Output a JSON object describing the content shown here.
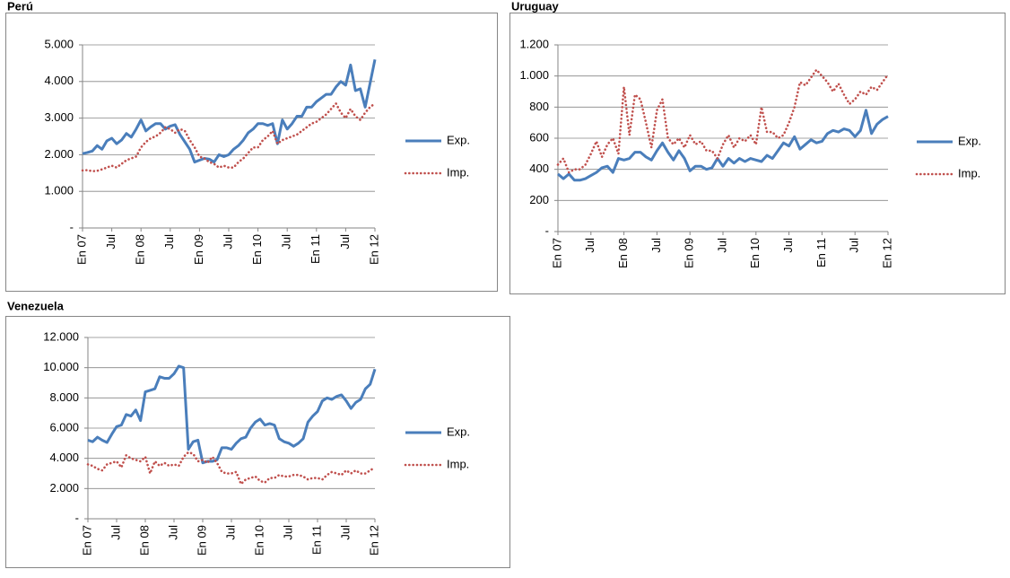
{
  "chart_data": [
    {
      "type": "line",
      "title": "Perú",
      "grid": true,
      "legend": "right",
      "categories": [
        "En 07",
        null,
        null,
        null,
        null,
        null,
        "Jul",
        null,
        null,
        null,
        null,
        null,
        "En 08",
        null,
        null,
        null,
        null,
        null,
        "Jul",
        null,
        null,
        null,
        null,
        null,
        "En 09",
        null,
        null,
        null,
        null,
        null,
        "Jul",
        null,
        null,
        null,
        null,
        null,
        "En 10",
        null,
        null,
        null,
        null,
        null,
        "Jul",
        null,
        null,
        null,
        null,
        null,
        "En 11",
        null,
        null,
        null,
        null,
        null,
        "Jul",
        null,
        null,
        null,
        null,
        null,
        "En 12"
      ],
      "ylim": [
        0,
        5000
      ],
      "yticks": [
        {
          "value": 0,
          "label": "-"
        },
        {
          "value": 1000,
          "label": "1.000"
        },
        {
          "value": 2000,
          "label": "2.000"
        },
        {
          "value": 3000,
          "label": "3.000"
        },
        {
          "value": 4000,
          "label": "4.000"
        },
        {
          "value": 5000,
          "label": "5.000"
        }
      ],
      "series": [
        {
          "name": "Exp.",
          "color": "#4a7ebb",
          "values": [
            2030,
            2060,
            2100,
            2250,
            2150,
            2380,
            2450,
            2300,
            2400,
            2580,
            2480,
            2700,
            2950,
            2650,
            2760,
            2850,
            2850,
            2700,
            2780,
            2820,
            2550,
            2350,
            2150,
            1800,
            1850,
            1900,
            1880,
            1800,
            2000,
            1950,
            2000,
            2150,
            2250,
            2400,
            2600,
            2700,
            2850,
            2850,
            2800,
            2850,
            2300,
            2950,
            2700,
            2850,
            3050,
            3050,
            3300,
            3300,
            3450,
            3550,
            3650,
            3650,
            3850,
            4000,
            3900,
            4450,
            3750,
            3800,
            3300,
            3950,
            4600
          ]
        },
        {
          "name": "Imp.",
          "color": "#c0504d",
          "values": [
            1570,
            1580,
            1550,
            1560,
            1600,
            1650,
            1700,
            1650,
            1750,
            1850,
            1900,
            1950,
            2200,
            2350,
            2450,
            2500,
            2600,
            2750,
            2700,
            2600,
            2700,
            2650,
            2400,
            2200,
            1950,
            1900,
            1800,
            1750,
            1650,
            1700,
            1650,
            1650,
            1800,
            1900,
            2050,
            2200,
            2200,
            2400,
            2500,
            2650,
            2300,
            2400,
            2450,
            2500,
            2550,
            2650,
            2750,
            2850,
            2900,
            3000,
            3100,
            3250,
            3400,
            3150,
            3000,
            3250,
            3050,
            2950,
            3150,
            3300,
            3400
          ]
        }
      ]
    },
    {
      "type": "line",
      "title": "Uruguay",
      "grid": true,
      "legend": "right",
      "categories": [
        "En 07",
        null,
        null,
        null,
        null,
        null,
        "Jul",
        null,
        null,
        null,
        null,
        null,
        "En 08",
        null,
        null,
        null,
        null,
        null,
        "Jul",
        null,
        null,
        null,
        null,
        null,
        "En 09",
        null,
        null,
        null,
        null,
        null,
        "Jul",
        null,
        null,
        null,
        null,
        null,
        "En 10",
        null,
        null,
        null,
        null,
        null,
        "Jul",
        null,
        null,
        null,
        null,
        null,
        "En 11",
        null,
        null,
        null,
        null,
        null,
        "Jul",
        null,
        null,
        null,
        null,
        null,
        "En 12"
      ],
      "ylim": [
        0,
        1200
      ],
      "yticks": [
        {
          "value": 0,
          "label": "-"
        },
        200,
        400,
        600,
        800,
        {
          "value": 1000,
          "label": "1.000"
        },
        {
          "value": 1200,
          "label": "1.200"
        }
      ],
      "series": [
        {
          "name": "Exp.",
          "color": "#4a7ebb",
          "values": [
            370,
            340,
            370,
            330,
            330,
            340,
            360,
            380,
            410,
            420,
            380,
            470,
            460,
            470,
            510,
            510,
            480,
            460,
            520,
            570,
            510,
            460,
            520,
            470,
            390,
            420,
            420,
            400,
            410,
            470,
            420,
            470,
            440,
            470,
            450,
            470,
            460,
            450,
            490,
            470,
            520,
            570,
            550,
            610,
            530,
            560,
            590,
            570,
            580,
            630,
            650,
            640,
            660,
            650,
            610,
            650,
            780,
            630,
            690,
            720,
            740
          ]
        },
        {
          "name": "Imp.",
          "color": "#c0504d",
          "values": [
            430,
            470,
            380,
            400,
            400,
            430,
            500,
            580,
            480,
            560,
            600,
            500,
            930,
            620,
            880,
            850,
            700,
            540,
            780,
            850,
            600,
            560,
            600,
            540,
            620,
            560,
            580,
            520,
            520,
            470,
            560,
            620,
            540,
            600,
            580,
            620,
            560,
            800,
            640,
            640,
            600,
            620,
            700,
            800,
            960,
            940,
            990,
            1040,
            1000,
            960,
            900,
            950,
            880,
            820,
            850,
            900,
            880,
            930,
            910,
            960,
            1010
          ]
        }
      ]
    },
    {
      "type": "line",
      "title": "Venezuela",
      "grid": true,
      "legend": "right",
      "categories": [
        "En 07",
        null,
        null,
        null,
        null,
        null,
        "Jul",
        null,
        null,
        null,
        null,
        null,
        "En 08",
        null,
        null,
        null,
        null,
        null,
        "Jul",
        null,
        null,
        null,
        null,
        null,
        "En 09",
        null,
        null,
        null,
        null,
        null,
        "Jul",
        null,
        null,
        null,
        null,
        null,
        "En 10",
        null,
        null,
        null,
        null,
        null,
        "Jul",
        null,
        null,
        null,
        null,
        null,
        "En 11",
        null,
        null,
        null,
        null,
        null,
        "Jul",
        null,
        null,
        null,
        null,
        null,
        "En 12"
      ],
      "ylim": [
        0,
        12000
      ],
      "yticks": [
        {
          "value": 0,
          "label": "-"
        },
        {
          "value": 2000,
          "label": "2.000"
        },
        {
          "value": 4000,
          "label": "4.000"
        },
        {
          "value": 6000,
          "label": "6.000"
        },
        {
          "value": 8000,
          "label": "8.000"
        },
        {
          "value": 10000,
          "label": "10.000"
        },
        {
          "value": 12000,
          "label": "12.000"
        }
      ],
      "series": [
        {
          "name": "Exp.",
          "color": "#4a7ebb",
          "values": [
            5200,
            5100,
            5400,
            5200,
            5050,
            5600,
            6100,
            6200,
            6900,
            6800,
            7200,
            6500,
            8400,
            8500,
            8600,
            9400,
            9300,
            9300,
            9600,
            10100,
            10000,
            4600,
            5100,
            5200,
            3700,
            3800,
            3800,
            3900,
            4700,
            4700,
            4600,
            5000,
            5300,
            5400,
            6000,
            6400,
            6600,
            6200,
            6300,
            6200,
            5300,
            5100,
            5000,
            4800,
            5000,
            5300,
            6400,
            6800,
            7100,
            7800,
            8000,
            7900,
            8100,
            8200,
            7800,
            7300,
            7700,
            7900,
            8600,
            8900,
            9900
          ]
        },
        {
          "name": "Imp.",
          "color": "#c0504d",
          "values": [
            3600,
            3500,
            3300,
            3200,
            3600,
            3700,
            3800,
            3400,
            4200,
            4000,
            3900,
            3800,
            4100,
            3000,
            3800,
            3500,
            3700,
            3500,
            3600,
            3500,
            4100,
            4400,
            4300,
            3800,
            3900,
            3700,
            4100,
            3700,
            3100,
            3000,
            3000,
            3100,
            2300,
            2600,
            2700,
            2800,
            2500,
            2400,
            2700,
            2700,
            2900,
            2800,
            2800,
            2900,
            2900,
            2800,
            2600,
            2700,
            2700,
            2600,
            2900,
            3100,
            3000,
            2900,
            3200,
            3000,
            3200,
            3000,
            3000,
            3200,
            3400
          ]
        }
      ]
    }
  ]
}
